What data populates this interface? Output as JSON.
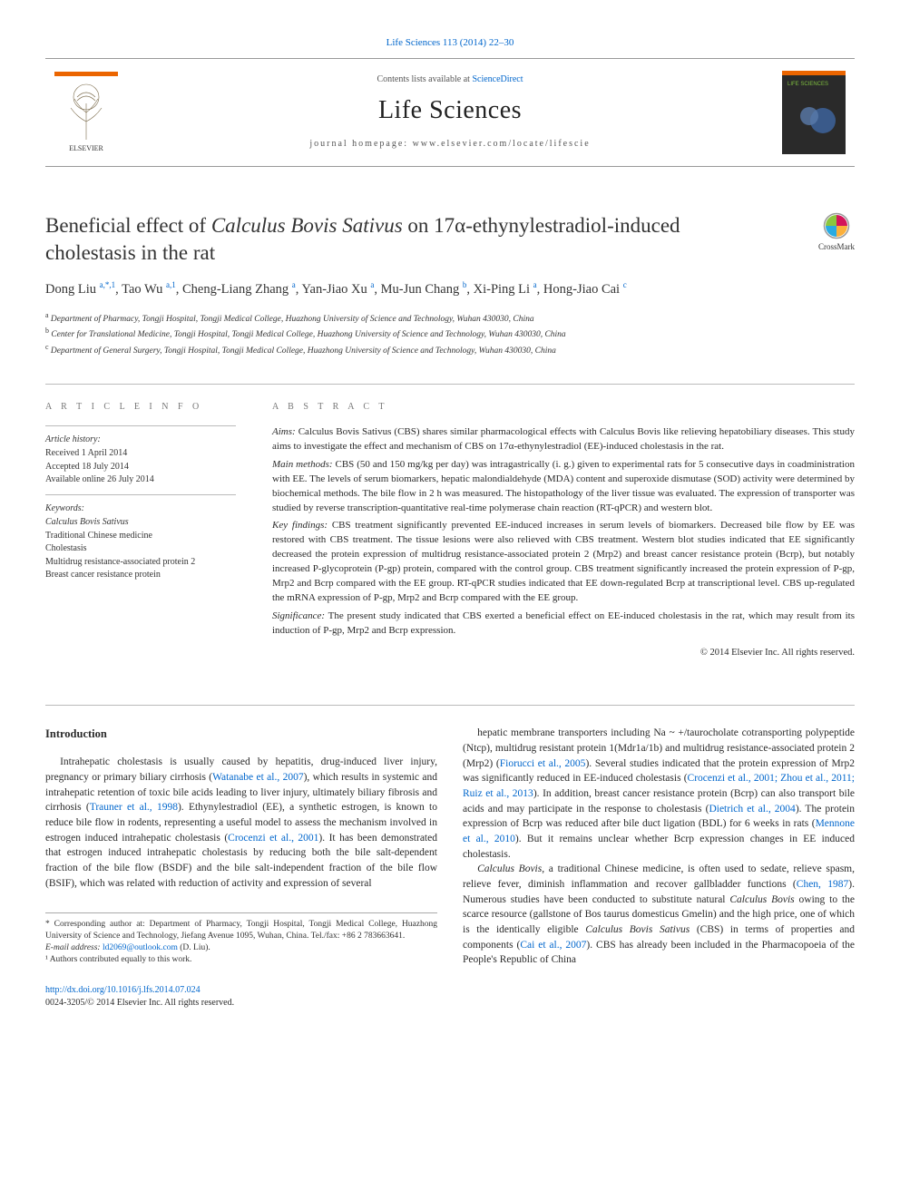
{
  "citation": "Life Sciences 113 (2014) 22–30",
  "header": {
    "contents_prefix": "Contents lists available at ",
    "contents_link": "ScienceDirect",
    "journal_name": "Life Sciences",
    "homepage_prefix": "journal homepage: ",
    "homepage_url": "www.elsevier.com/locate/lifescie",
    "publisher_logo_label": "ELSEVIER",
    "cover_label": "LIFE SCIENCES"
  },
  "crossmark": {
    "label": "CrossMark"
  },
  "title_pre": "Beneficial effect of ",
  "title_em": "Calculus Bovis Sativus",
  "title_post": " on 17α-ethynylestradiol-induced cholestasis in the rat",
  "authors_html": "Dong Liu <sup>a,*,1</sup>, Tao Wu <sup>a,1</sup>, Cheng-Liang Zhang <sup>a</sup>, Yan-Jiao Xu <sup>a</sup>, Mu-Jun Chang <sup>b</sup>, Xi-Ping Li <sup>a</sup>, Hong-Jiao Cai <sup>c</sup>",
  "affiliations": [
    {
      "sup": "a",
      "text": "Department of Pharmacy, Tongji Hospital, Tongji Medical College, Huazhong University of Science and Technology, Wuhan 430030, China"
    },
    {
      "sup": "b",
      "text": "Center for Translational Medicine, Tongji Hospital, Tongji Medical College, Huazhong University of Science and Technology, Wuhan 430030, China"
    },
    {
      "sup": "c",
      "text": "Department of General Surgery, Tongji Hospital, Tongji Medical College, Huazhong University of Science and Technology, Wuhan 430030, China"
    }
  ],
  "article_info": {
    "heading": "A R T I C L E   I N F O",
    "history_head": "Article history:",
    "received": "Received 1 April 2014",
    "accepted": "Accepted 18 July 2014",
    "online": "Available online 26 July 2014",
    "keywords_head": "Keywords:",
    "keywords": [
      "Calculus Bovis Sativus",
      "Traditional Chinese medicine",
      "Cholestasis",
      "Multidrug resistance-associated protein 2",
      "Breast cancer resistance protein"
    ]
  },
  "abstract": {
    "heading": "A B S T R A C T",
    "aims_label": "Aims:",
    "aims": " Calculus Bovis Sativus (CBS) shares similar pharmacological effects with Calculus Bovis like relieving hepatobiliary diseases. This study aims to investigate the effect and mechanism of CBS on 17α-ethynylestradiol (EE)-induced cholestasis in the rat.",
    "methods_label": "Main methods:",
    "methods": " CBS (50 and 150 mg/kg per day) was intragastrically (i. g.) given to experimental rats for 5 consecutive days in coadministration with EE. The levels of serum biomarkers, hepatic malondialdehyde (MDA) content and superoxide dismutase (SOD) activity were determined by biochemical methods. The bile flow in 2 h was measured. The histopathology of the liver tissue was evaluated. The expression of transporter was studied by reverse transcription-quantitative real-time polymerase chain reaction (RT-qPCR) and western blot.",
    "findings_label": "Key findings:",
    "findings": " CBS treatment significantly prevented EE-induced increases in serum levels of biomarkers. Decreased bile flow by EE was restored with CBS treatment. The tissue lesions were also relieved with CBS treatment. Western blot studies indicated that EE significantly decreased the protein expression of multidrug resistance-associated protein 2 (Mrp2) and breast cancer resistance protein (Bcrp), but notably increased P-glycoprotein (P-gp) protein, compared with the control group. CBS treatment significantly increased the protein expression of P-gp, Mrp2 and Bcrp compared with the EE group. RT-qPCR studies indicated that EE down-regulated Bcrp at transcriptional level. CBS up-regulated the mRNA expression of P-gp, Mrp2 and Bcrp compared with the EE group.",
    "significance_label": "Significance:",
    "significance": " The present study indicated that CBS exerted a beneficial effect on EE-induced cholestasis in the rat, which may result from its induction of P-gp, Mrp2 and Bcrp expression.",
    "copyright": "© 2014 Elsevier Inc. All rights reserved."
  },
  "intro": {
    "heading": "Introduction",
    "col1": "Intrahepatic cholestasis is usually caused by hepatitis, drug-induced liver injury, pregnancy or primary biliary cirrhosis (<span class=\"link\">Watanabe et al., 2007</span>), which results in systemic and intrahepatic retention of toxic bile acids leading to liver injury, ultimately biliary fibrosis and cirrhosis (<span class=\"link\">Trauner et al., 1998</span>). Ethynylestradiol (EE), a synthetic estrogen, is known to reduce bile flow in rodents, representing a useful model to assess the mechanism involved in estrogen induced intrahepatic cholestasis (<span class=\"link\">Crocenzi et al., 2001</span>). It has been demonstrated that estrogen induced intrahepatic cholestasis by reducing both the bile salt-dependent fraction of the bile flow (BSDF) and the bile salt-independent fraction of the bile flow (BSIF), which was related with reduction of activity and expression of several",
    "col2a": "hepatic membrane transporters including Na ~ +/taurocholate cotransporting polypeptide (Ntcp), multidrug resistant protein 1(Mdr1a/1b) and multidrug resistance-associated protein 2 (Mrp2) (<span class=\"link\">Fiorucci et al., 2005</span>). Several studies indicated that the protein expression of Mrp2 was significantly reduced in EE-induced cholestasis (<span class=\"link\">Crocenzi et al., 2001; Zhou et al., 2011; Ruiz et al., 2013</span>). In addition, breast cancer resistance protein (Bcrp) can also transport bile acids and may participate in the response to cholestasis (<span class=\"link\">Dietrich et al., 2004</span>). The protein expression of Bcrp was reduced after bile duct ligation (BDL) for 6 weeks in rats (<span class=\"link\">Mennone et al., 2010</span>). But it remains unclear whether Bcrp expression changes in EE induced cholestasis.",
    "col2b": "<em>Calculus Bovis</em>, a traditional Chinese medicine, is often used to sedate, relieve spasm, relieve fever, diminish inflammation and recover gallbladder functions (<span class=\"link\">Chen, 1987</span>). Numerous studies have been conducted to substitute natural <em>Calculus Bovis</em> owing to the scarce resource (gallstone of Bos taurus domesticus Gmelin) and the high price, one of which is the identically eligible <em>Calculus Bovis Sativus</em> (CBS) in terms of properties and components (<span class=\"link\">Cai et al., 2007</span>). CBS has already been included in the Pharmacopoeia of the People's Republic of China"
  },
  "footnotes": {
    "corresponding": "* Corresponding author at: Department of Pharmacy, Tongji Hospital, Tongji Medical College, Huazhong University of Science and Technology, Jiefang Avenue 1095, Wuhan, China. Tel./fax: +86 2 783663641.",
    "email_label": "E-mail address: ",
    "email": "ld2069@outlook.com",
    "email_suffix": " (D. Liu).",
    "equal": "¹ Authors contributed equally to this work."
  },
  "bottom": {
    "doi": "http://dx.doi.org/10.1016/j.lfs.2014.07.024",
    "issn": "0024-3205/© 2014 Elsevier Inc. All rights reserved."
  },
  "colors": {
    "link": "#0066cc",
    "rule": "#bbbbbb",
    "text": "#2a2a2a",
    "orange": "#eb6500"
  }
}
